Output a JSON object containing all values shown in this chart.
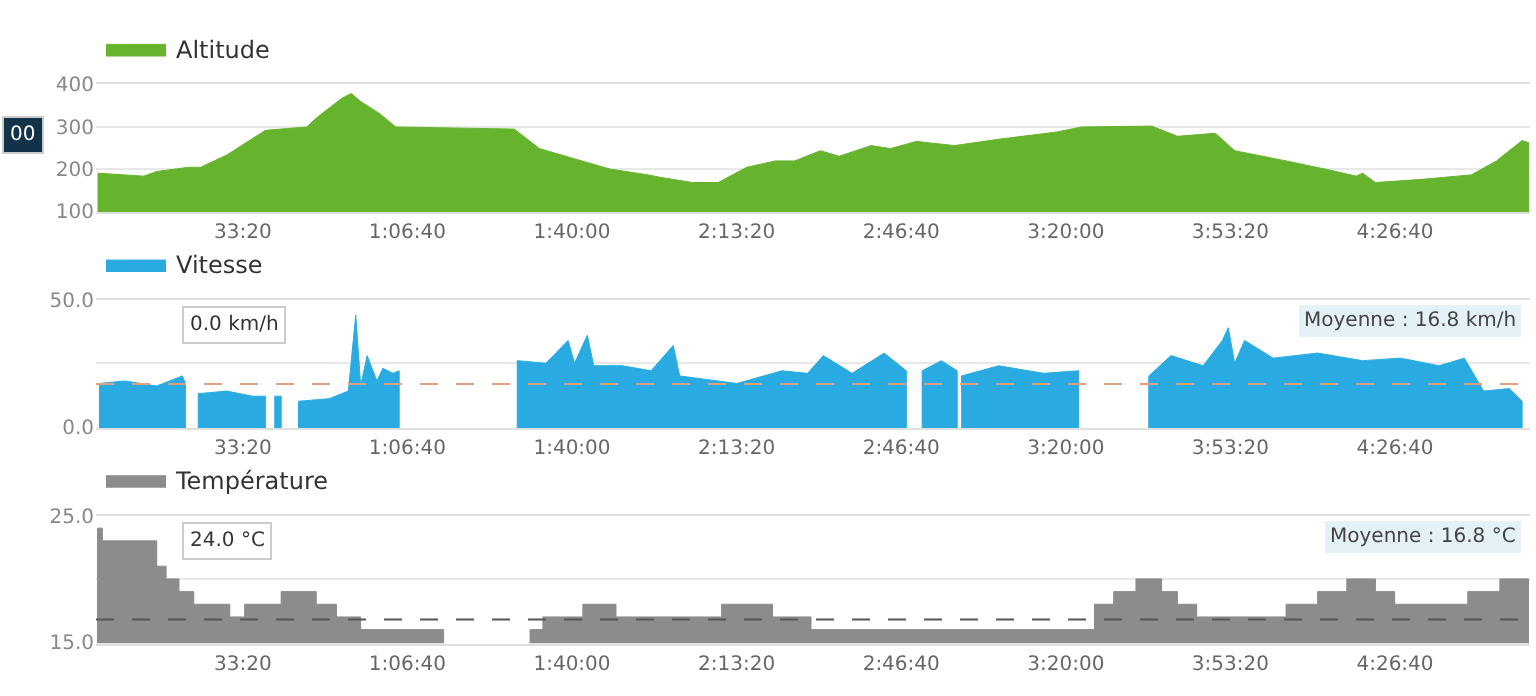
{
  "chart_data": [
    {
      "type": "area",
      "legend": "top left",
      "grid": "y",
      "xlim": [
        3.6,
        294
      ],
      "ylim": [
        98,
        400
      ],
      "xticks": [
        {
          "value": 33.333,
          "label": "33:20"
        },
        {
          "value": 66.667,
          "label": "1:06:40"
        },
        {
          "value": 100,
          "label": "1:40:00"
        },
        {
          "value": 133.333,
          "label": "2:13:20"
        },
        {
          "value": 166.667,
          "label": "2:46:40"
        },
        {
          "value": 200,
          "label": "3:20:00"
        },
        {
          "value": 233.333,
          "label": "3:53:20"
        },
        {
          "value": 266.667,
          "label": "4:26:40"
        }
      ],
      "yticks": [
        100,
        200,
        300,
        400
      ],
      "x": [
        4.0,
        13.3,
        15.9,
        22.4,
        24.8,
        30.1,
        37.9,
        46.3,
        48.2,
        53.4,
        55.3,
        57.2,
        61.1,
        64.3,
        88.3,
        93.4,
        99.9,
        107.6,
        115.4,
        118.0,
        124.4,
        129.6,
        135.4,
        141.2,
        145.1,
        150.3,
        154.1,
        160.6,
        164.5,
        169.7,
        177.4,
        186.4,
        198.1,
        203.2,
        217.4,
        222.6,
        230.3,
        234.2,
        244.6,
        253.6,
        258.8,
        260.1,
        262.7,
        271.7,
        282.1,
        287.2,
        292.4,
        293.7
      ],
      "series": [
        {
          "name": "Altitude",
          "color": "#66b32e",
          "values": [
            190,
            183,
            194,
            204,
            204,
            233,
            291,
            299,
            320,
            367,
            378,
            359,
            330,
            299,
            294,
            248,
            226,
            200,
            186,
            180,
            168,
            168,
            204,
            219,
            219,
            243,
            230,
            255,
            248,
            265,
            255,
            270,
            287,
            299,
            301,
            277,
            284,
            243,
            219,
            197,
            183,
            190,
            168,
            175,
            186,
            219,
            267,
            262
          ]
        }
      ],
      "annotations": [
        "00"
      ]
    },
    {
      "type": "area",
      "legend": "top left",
      "grid": "y",
      "xlim": [
        3.6,
        294
      ],
      "ylim": [
        -0.5,
        50
      ],
      "xticks": [
        {
          "value": 33.333,
          "label": "33:20"
        },
        {
          "value": 66.667,
          "label": "1:06:40"
        },
        {
          "value": 100,
          "label": "1:40:00"
        },
        {
          "value": 133.333,
          "label": "2:13:20"
        },
        {
          "value": 166.667,
          "label": "2:46:40"
        },
        {
          "value": 200,
          "label": "3:20:00"
        },
        {
          "value": 233.333,
          "label": "3:53:20"
        },
        {
          "value": 266.667,
          "label": "4:26:40"
        }
      ],
      "yticks": [
        {
          "value": 0,
          "label": "0.0"
        },
        {
          "value": 25,
          "label": null
        },
        {
          "value": 50,
          "label": "50.0"
        }
      ],
      "x": [
        4.3,
        9.4,
        15.9,
        21.1,
        21.7,
        23.0,
        24.3,
        30.1,
        35.3,
        37.9,
        38.8,
        39.8,
        41.1,
        42.8,
        44.6,
        50.8,
        54.7,
        56.2,
        57.2,
        58.5,
        60.5,
        61.7,
        63.7,
        65.0,
        76.6,
        88.9,
        94.7,
        99.2,
        100.5,
        103.1,
        104.4,
        110.2,
        116.0,
        120.5,
        121.8,
        133.4,
        142.5,
        147.7,
        150.9,
        156.7,
        163.2,
        167.7,
        169.4,
        170.9,
        174.8,
        178.0,
        178.4,
        178.9,
        186.4,
        195.5,
        202.6,
        209.7,
        216.8,
        221.3,
        227.8,
        231.7,
        232.9,
        234.2,
        236.2,
        242.0,
        251.0,
        260.1,
        267.8,
        275.6,
        280.7,
        284.6,
        289.8,
        292.4
      ],
      "series": [
        {
          "name": "Vitesse",
          "color": "#29abe2",
          "values": [
            17,
            18,
            16,
            20,
            17,
            null,
            13,
            14,
            12,
            12,
            null,
            12,
            12,
            null,
            10,
            11,
            14,
            44,
            16,
            28,
            18,
            23,
            21,
            22,
            null,
            26,
            25,
            34,
            25,
            36,
            24,
            24,
            22,
            32,
            20,
            17,
            22,
            21,
            28,
            21,
            29,
            22,
            null,
            22,
            26,
            22,
            null,
            20,
            24,
            21,
            22,
            null,
            20,
            28,
            24,
            34,
            39,
            25,
            34,
            27,
            29,
            26,
            27,
            24,
            27,
            14,
            15,
            10
          ]
        }
      ],
      "ref_lines": [
        {
          "axis": "y",
          "value": 16.8,
          "label": "Moyenne : 16.8 km/h",
          "color": "#e0a080",
          "line_style": "dashed"
        }
      ],
      "annotations": [
        "0.0 km/h"
      ]
    },
    {
      "type": "area",
      "legend": "top left",
      "grid": "y",
      "xlim": [
        3.6,
        294
      ],
      "ylim": [
        14.9,
        25
      ],
      "xticks": [
        {
          "value": 33.333,
          "label": "33:20"
        },
        {
          "value": 66.667,
          "label": "1:06:40"
        },
        {
          "value": 100,
          "label": "1:40:00"
        },
        {
          "value": 133.333,
          "label": "2:13:20"
        },
        {
          "value": 166.667,
          "label": "2:46:40"
        },
        {
          "value": 200,
          "label": "3:20:00"
        },
        {
          "value": 233.333,
          "label": "3:53:20"
        },
        {
          "value": 266.667,
          "label": "4:26:40"
        }
      ],
      "yticks": [
        {
          "value": 15,
          "label": "15.0"
        },
        {
          "value": 20,
          "label": null
        },
        {
          "value": 25,
          "label": "25.0"
        }
      ],
      "x": [
        3.9,
        4.9,
        4.9,
        15.9,
        15.9,
        17.8,
        17.8,
        20.4,
        20.4,
        23.4,
        23.4,
        30.7,
        30.7,
        33.7,
        33.7,
        41.1,
        41.1,
        48.2,
        48.2,
        52.3,
        52.3,
        57.2,
        57.2,
        74.0,
        78.0,
        91.5,
        94.1,
        94.1,
        102.2,
        102.2,
        108.9,
        108.9,
        130.3,
        130.3,
        140.6,
        140.6,
        148.4,
        148.4,
        205.8,
        205.8,
        209.7,
        209.7,
        214.2,
        214.2,
        219.4,
        219.4,
        222.6,
        222.6,
        226.5,
        226.5,
        244.6,
        244.6,
        251.0,
        251.0,
        256.9,
        256.9,
        262.7,
        262.7,
        266.6,
        266.6,
        281.4,
        281.4,
        287.9,
        287.9,
        293.7
      ],
      "series": [
        {
          "name": "Température",
          "color": "#8c8c8c",
          "values": [
            24,
            24,
            23,
            23,
            21,
            21,
            20,
            20,
            19,
            19,
            18,
            18,
            17,
            17,
            18,
            18,
            19,
            19,
            18,
            18,
            17,
            17,
            16,
            16,
            null,
            16,
            16,
            17,
            17,
            18,
            18,
            17,
            17,
            18,
            18,
            17,
            17,
            16,
            16,
            18,
            18,
            19,
            19,
            20,
            20,
            19,
            19,
            18,
            18,
            17,
            17,
            18,
            18,
            19,
            19,
            20,
            20,
            19,
            19,
            18,
            18,
            19,
            19,
            20,
            20
          ]
        }
      ],
      "ref_lines": [
        {
          "axis": "y",
          "value": 16.8,
          "label": "Moyenne : 16.8 °C",
          "color": "#555555",
          "line_style": "dashed"
        }
      ],
      "annotations": [
        "24.0 °C"
      ]
    }
  ]
}
